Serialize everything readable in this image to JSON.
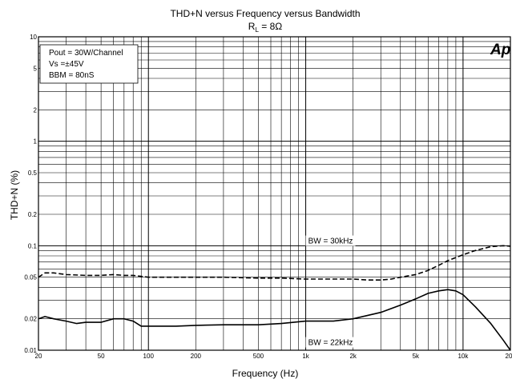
{
  "chart_data": {
    "type": "line",
    "title": "THD+N versus Frequency versus Bandwidth",
    "subtitle_main": "R",
    "subtitle_sub": "L",
    "subtitle_rest": " = 8Ω",
    "xlabel": "Frequency (Hz)",
    "ylabel": "THD+N (%)",
    "x_scale": "log",
    "y_scale": "log",
    "xlim": [
      20,
      20000
    ],
    "ylim": [
      0.01,
      10
    ],
    "grid": true,
    "logo": "Ap",
    "x_ticks": [
      {
        "value": 20,
        "label": "20"
      },
      {
        "value": 50,
        "label": "50"
      },
      {
        "value": 100,
        "label": "100"
      },
      {
        "value": 200,
        "label": "200"
      },
      {
        "value": 500,
        "label": "500"
      },
      {
        "value": 1000,
        "label": "1k"
      },
      {
        "value": 2000,
        "label": "2k"
      },
      {
        "value": 5000,
        "label": "5k"
      },
      {
        "value": 10000,
        "label": "10k"
      },
      {
        "value": 20000,
        "label": "20k"
      }
    ],
    "y_ticks": [
      {
        "value": 0.01,
        "label": "0.01"
      },
      {
        "value": 0.02,
        "label": "0.02"
      },
      {
        "value": 0.05,
        "label": "0.05"
      },
      {
        "value": 0.1,
        "label": "0.1"
      },
      {
        "value": 0.2,
        "label": "0.2"
      },
      {
        "value": 0.5,
        "label": "0.5"
      },
      {
        "value": 1,
        "label": "1"
      },
      {
        "value": 2,
        "label": "2"
      },
      {
        "value": 5,
        "label": "5"
      },
      {
        "value": 10,
        "label": "10"
      }
    ],
    "conditions": [
      "Pout = 30W/Channel",
      "Vs =±45V",
      "BBM = 80nS"
    ],
    "series": [
      {
        "name": "BW = 30kHz",
        "style": "dashed",
        "x": [
          20,
          22,
          25,
          30,
          40,
          50,
          60,
          70,
          80,
          100,
          150,
          200,
          300,
          500,
          700,
          1000,
          1500,
          2000,
          2500,
          3000,
          3500,
          4000,
          5000,
          6000,
          7000,
          8000,
          10000,
          12000,
          15000,
          18000,
          20000
        ],
        "y": [
          0.05,
          0.055,
          0.055,
          0.053,
          0.052,
          0.052,
          0.053,
          0.052,
          0.052,
          0.05,
          0.05,
          0.05,
          0.05,
          0.049,
          0.049,
          0.048,
          0.048,
          0.048,
          0.047,
          0.047,
          0.048,
          0.05,
          0.053,
          0.058,
          0.065,
          0.072,
          0.082,
          0.09,
          0.098,
          0.1,
          0.099
        ]
      },
      {
        "name": "BW = 22kHz",
        "style": "solid",
        "x": [
          20,
          22,
          25,
          30,
          35,
          40,
          50,
          60,
          70,
          80,
          90,
          100,
          150,
          200,
          300,
          500,
          700,
          1000,
          1500,
          2000,
          3000,
          4000,
          5000,
          6000,
          7000,
          8000,
          9000,
          10000,
          12000,
          15000,
          18000,
          20000
        ],
        "y": [
          0.02,
          0.021,
          0.02,
          0.019,
          0.018,
          0.0185,
          0.0185,
          0.02,
          0.02,
          0.019,
          0.017,
          0.017,
          0.017,
          0.0173,
          0.0175,
          0.0175,
          0.018,
          0.019,
          0.019,
          0.02,
          0.023,
          0.027,
          0.031,
          0.035,
          0.037,
          0.038,
          0.037,
          0.034,
          0.026,
          0.018,
          0.0125,
          0.01
        ]
      }
    ],
    "series_labels": [
      {
        "text": "BW = 30kHz",
        "x": 1000,
        "y": 0.105
      },
      {
        "text": "BW = 22kHz",
        "x": 1000,
        "y": 0.0112
      }
    ]
  }
}
